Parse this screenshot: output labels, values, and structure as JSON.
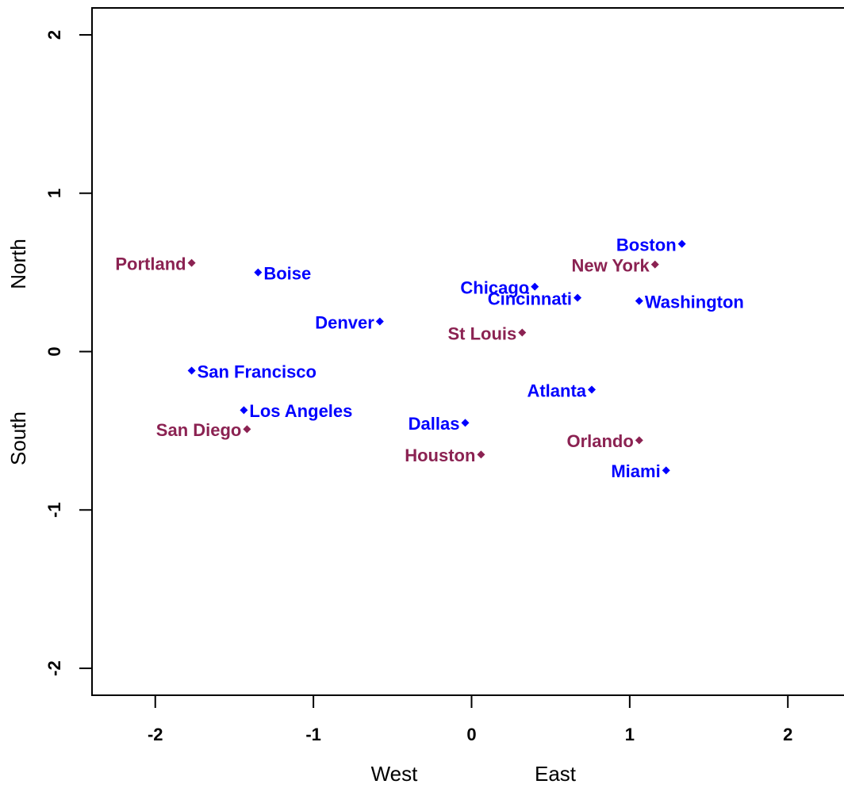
{
  "chart_data": {
    "type": "scatter",
    "x_labels": [
      "West",
      "East"
    ],
    "y_labels": [
      "South",
      "North"
    ],
    "xlim": [
      -2.4,
      2.35
    ],
    "ylim": [
      -2.17,
      2.17
    ],
    "xticks": [
      -2,
      -1,
      0,
      1,
      2
    ],
    "yticks": [
      -2,
      -1,
      0,
      1,
      2
    ],
    "labels": [
      "Boston",
      "New York",
      "Chicago",
      "Cincinnati",
      "Washington",
      "Portland",
      "Boise",
      "Denver",
      "St Louis",
      "San Francisco",
      "Atlanta",
      "Los Angeles",
      "Dallas",
      "San Diego",
      "Orlando",
      "Houston",
      "Miami"
    ],
    "x": [
      1.33,
      1.16,
      0.4,
      0.67,
      1.06,
      -1.77,
      -1.35,
      -0.58,
      0.32,
      -1.77,
      0.76,
      -1.44,
      -0.04,
      -1.42,
      1.06,
      0.06,
      1.23
    ],
    "y": [
      0.68,
      0.55,
      0.41,
      0.34,
      0.32,
      0.56,
      0.5,
      0.19,
      0.12,
      -0.12,
      -0.24,
      -0.37,
      -0.45,
      -0.49,
      -0.56,
      -0.65,
      -0.75
    ],
    "colors": [
      "#0000ff",
      "#8b2252",
      "#0000ff",
      "#0000ff",
      "#0000ff",
      "#8b2252",
      "#0000ff",
      "#0000ff",
      "#8b2252",
      "#0000ff",
      "#0000ff",
      "#0000ff",
      "#0000ff",
      "#8b2252",
      "#8b2252",
      "#8b2252",
      "#0000ff"
    ],
    "label_sides": [
      "left",
      "left",
      "left",
      "left",
      "right",
      "left",
      "right",
      "left",
      "left",
      "right",
      "left",
      "right",
      "left",
      "left",
      "left",
      "left",
      "left"
    ]
  }
}
